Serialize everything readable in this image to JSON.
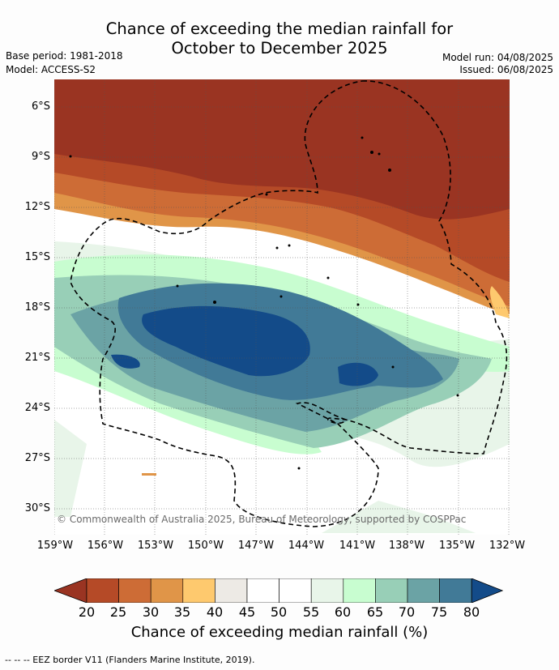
{
  "title_line1": "Chance of exceeding the median rainfall for",
  "title_line2": "October to December 2025",
  "base_period": "Base period: 1981-2018",
  "model": "Model: ACCESS-S2",
  "model_run": "Model run: 04/08/2025",
  "issued": "Issued: 06/08/2025",
  "copyright": "© Commonwealth of Australia 2025, Bureau of Meteorology, supported by COSPPac",
  "lat_labels": [
    "6°S",
    "9°S",
    "12°S",
    "15°S",
    "18°S",
    "21°S",
    "24°S",
    "27°S",
    "30°S"
  ],
  "lon_labels": [
    "159°W",
    "156°W",
    "153°W",
    "150°W",
    "147°W",
    "144°W",
    "141°W",
    "138°W",
    "135°W",
    "132°W"
  ],
  "colorbar": {
    "title": "Chance of exceeding median rainfall (%)",
    "ticks": [
      "20",
      "25",
      "30",
      "35",
      "40",
      "45",
      "50",
      "55",
      "60",
      "65",
      "70",
      "75",
      "80"
    ],
    "colors": [
      "#9a3422",
      "#b54a27",
      "#cd6c36",
      "#e09548",
      "#fec96e",
      "#edeae5",
      "#ffffff",
      "#ffffff",
      "#e8f5e9",
      "#c8fdd0",
      "#98cfb7",
      "#6ba3a5",
      "#417a97",
      "#134b89"
    ]
  },
  "footer": "--  --  -- EEZ border V11 (Flanders Marine Institute, 2019)."
}
